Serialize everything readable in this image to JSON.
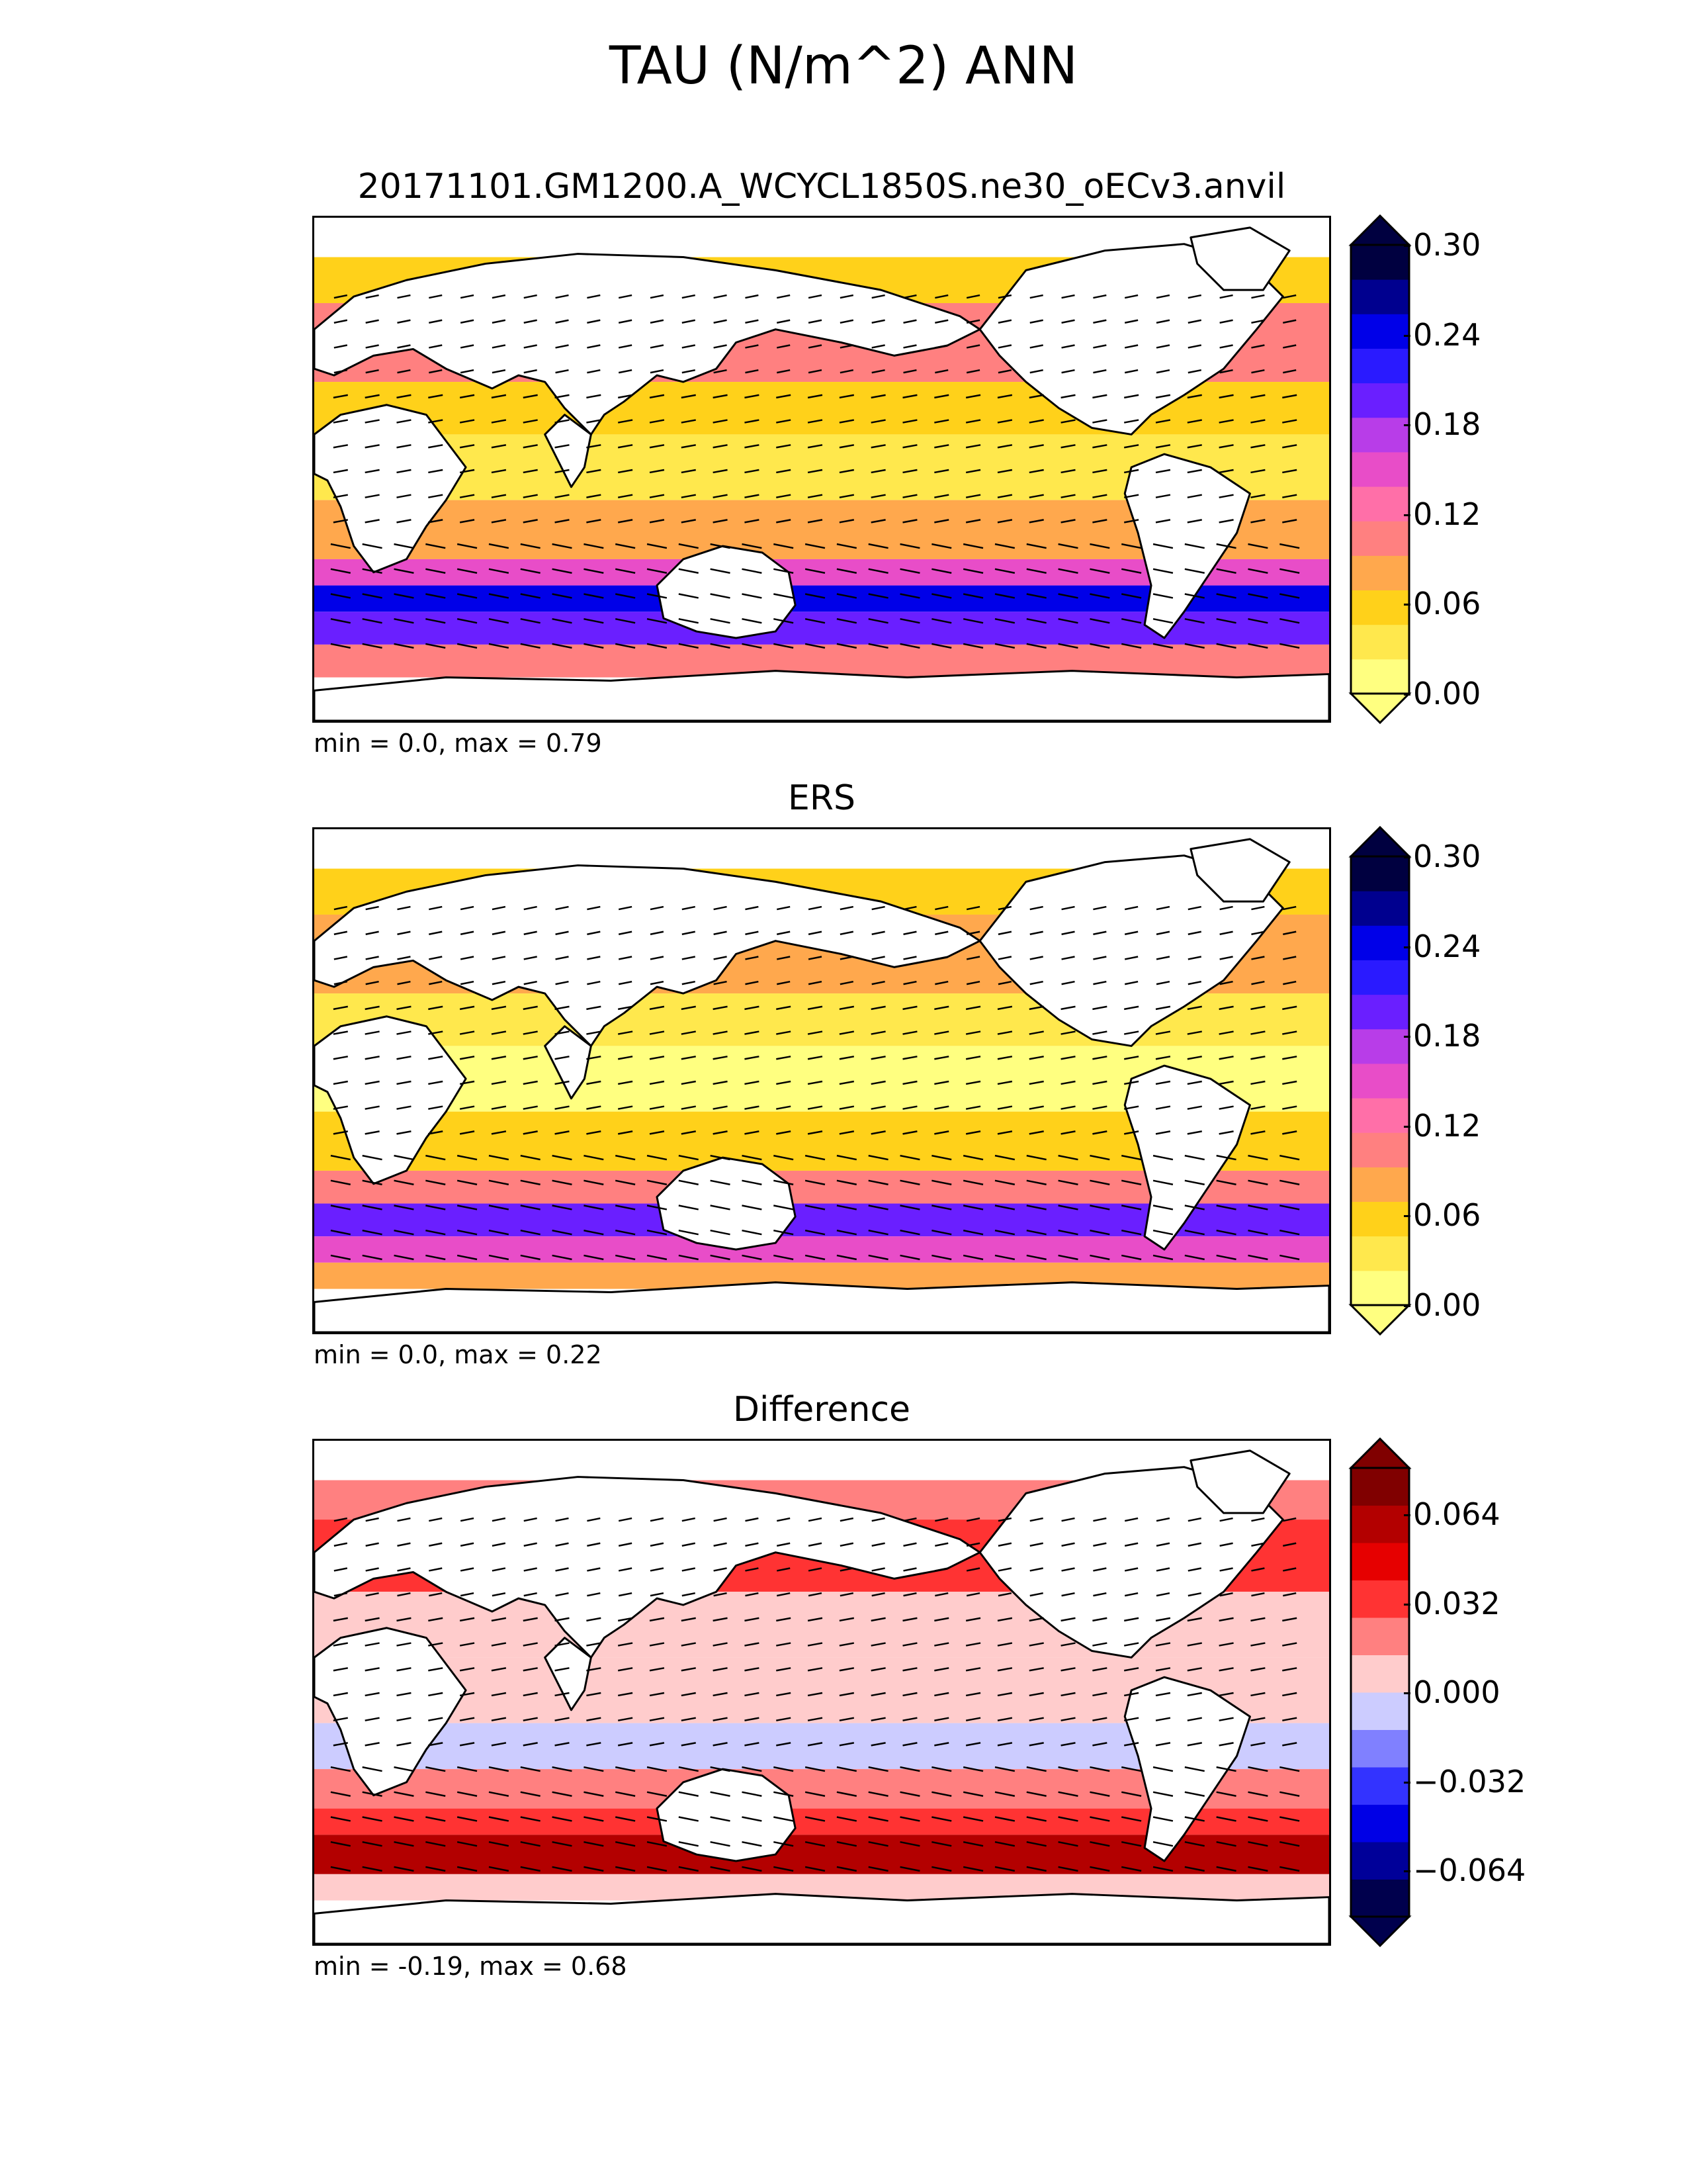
{
  "figure": {
    "title": "TAU (N/m^2) ANN"
  },
  "panels": [
    {
      "id": "test",
      "title": "20171101.GM1200.A_WCYCL1850S.ne30_oECv3.anvil",
      "stats": "min = 0.0, max = 0.79",
      "colorbar": {
        "ticks": [
          "0.30",
          "0.24",
          "0.18",
          "0.12",
          "0.06",
          "0.00"
        ],
        "colors": [
          "#ffff80",
          "#ffe84d",
          "#ffd11a",
          "#ffa84d",
          "#ff8080",
          "#ff6fa8",
          "#e84dc8",
          "#b83de8",
          "#6a1fff",
          "#2a1aff",
          "#0000e8",
          "#00008f",
          "#000040"
        ],
        "extend": "both",
        "palette": "wind-stress"
      }
    },
    {
      "id": "reference",
      "title": "ERS",
      "stats": "min = 0.0, max = 0.22",
      "colorbar": {
        "ticks": [
          "0.30",
          "0.24",
          "0.18",
          "0.12",
          "0.06",
          "0.00"
        ],
        "colors": [
          "#ffff80",
          "#ffe84d",
          "#ffd11a",
          "#ffa84d",
          "#ff8080",
          "#ff6fa8",
          "#e84dc8",
          "#b83de8",
          "#6a1fff",
          "#2a1aff",
          "#0000e8",
          "#00008f",
          "#000040"
        ],
        "extend": "both",
        "palette": "wind-stress"
      }
    },
    {
      "id": "difference",
      "title": "Difference",
      "stats": "min = -0.19, max = 0.68",
      "colorbar": {
        "ticks": [
          "0.064",
          "0.032",
          "0.000",
          "−0.032",
          "−0.064"
        ],
        "colors": [
          "#00004d",
          "#000099",
          "#0000e6",
          "#3333ff",
          "#8080ff",
          "#ccccff",
          "#ffcccc",
          "#ff8080",
          "#ff3333",
          "#e60000",
          "#b30000",
          "#800000"
        ],
        "extend": "both",
        "palette": "diverging-blue-red"
      }
    }
  ]
}
